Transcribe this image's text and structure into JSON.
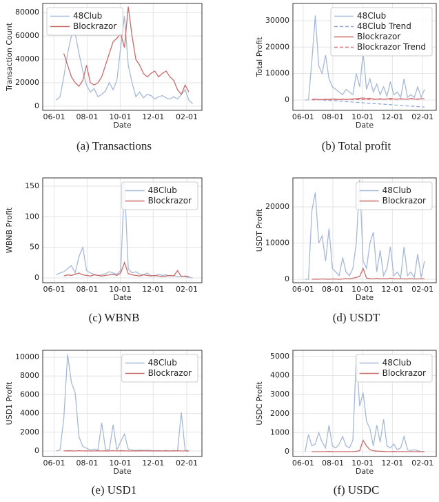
{
  "chart_data": [
    {
      "type": "line",
      "caption": "(a) Transactions",
      "xlabel": "Date",
      "ylabel": "Transaction Count",
      "legend": "upper left",
      "grid": true,
      "x": [
        "06-05",
        "06-12",
        "06-19",
        "06-26",
        "07-03",
        "07-10",
        "07-17",
        "07-24",
        "07-31",
        "08-07",
        "08-14",
        "08-21",
        "08-28",
        "09-04",
        "09-11",
        "09-18",
        "09-25",
        "10-02",
        "10-09",
        "10-16",
        "10-23",
        "10-30",
        "11-06",
        "11-13",
        "11-20",
        "11-27",
        "12-04",
        "12-11",
        "12-18",
        "12-25",
        "01-01",
        "01-08",
        "01-15",
        "01-22",
        "01-29",
        "02-05",
        "02-12",
        "02-19"
      ],
      "xlim": [
        "05-11",
        "03-01"
      ],
      "xticks": [
        "06-01",
        "08-01",
        "10-01",
        "12-01",
        "02-01"
      ],
      "ylim": [
        -3600,
        87800
      ],
      "yticks": [
        0,
        20000,
        40000,
        60000,
        80000
      ],
      "series": [
        {
          "name": "48Club",
          "color": "#a6b9d9",
          "values": [
            5000,
            8000,
            25000,
            45000,
            60000,
            62000,
            45000,
            30000,
            18000,
            12000,
            15000,
            8000,
            10000,
            13000,
            20000,
            14000,
            22000,
            50000,
            77000,
            35000,
            20000,
            8000,
            12000,
            7000,
            10000,
            9000,
            6000,
            8000,
            9000,
            7000,
            6000,
            8000,
            6000,
            10000,
            14000,
            5000,
            2000,
            null
          ]
        },
        {
          "name": "Blockrazor",
          "color": "#c96a6a",
          "values": [
            null,
            null,
            45000,
            35000,
            25000,
            20000,
            17000,
            22000,
            35000,
            20000,
            18000,
            20000,
            25000,
            35000,
            45000,
            55000,
            58000,
            62000,
            50000,
            85000,
            60000,
            40000,
            35000,
            28000,
            25000,
            28000,
            30000,
            25000,
            28000,
            30000,
            25000,
            22000,
            14000,
            10000,
            18000,
            12000,
            null,
            null
          ]
        }
      ]
    },
    {
      "type": "line",
      "caption": "(b) Total profit",
      "xlabel": "Date",
      "ylabel": "Total Profit",
      "legend": "upper right",
      "grid": true,
      "x": [
        "06-05",
        "06-12",
        "06-19",
        "06-26",
        "07-03",
        "07-10",
        "07-17",
        "07-24",
        "07-31",
        "08-07",
        "08-14",
        "08-21",
        "08-28",
        "09-04",
        "09-11",
        "09-18",
        "09-25",
        "10-02",
        "10-09",
        "10-16",
        "10-23",
        "10-30",
        "11-06",
        "11-13",
        "11-20",
        "11-27",
        "12-04",
        "12-11",
        "12-18",
        "12-25",
        "01-01",
        "01-08",
        "01-15",
        "01-22",
        "01-29",
        "02-05",
        "02-12",
        "02-19"
      ],
      "xlim": [
        "05-11",
        "03-01"
      ],
      "xticks": [
        "06-01",
        "08-01",
        "10-01",
        "12-01",
        "02-01"
      ],
      "ylim": [
        -3900,
        36500
      ],
      "yticks": [
        0,
        10000,
        20000,
        30000
      ],
      "series": [
        {
          "name": "48Club",
          "color": "#a6b9d9",
          "values": [
            0,
            0,
            15000,
            32000,
            13000,
            10000,
            17000,
            8000,
            5000,
            4000,
            3000,
            2000,
            4000,
            3000,
            2000,
            10000,
            5000,
            18000,
            4000,
            8000,
            3000,
            6000,
            2000,
            5000,
            1500,
            7000,
            2000,
            3000,
            1000,
            8000,
            1000,
            2000,
            1000,
            5000,
            1000,
            4000,
            null,
            null
          ]
        },
        {
          "name": "48Club Trend",
          "color": "#8fa9d6",
          "linestyle": "dashed",
          "values": [
            null,
            null,
            300,
            210,
            120,
            30,
            -60,
            -150,
            -240,
            -330,
            -420,
            -510,
            -600,
            -690,
            -780,
            -870,
            -960,
            -1050,
            -1140,
            -1230,
            -1320,
            -1410,
            -1500,
            -1590,
            -1680,
            -1770,
            -1860,
            -1950,
            -2040,
            -2130,
            -2220,
            -2310,
            -2400,
            -2490,
            -2580,
            -2670,
            null,
            null
          ]
        },
        {
          "name": "Blockrazor",
          "color": "#c96a6a",
          "values": [
            null,
            null,
            200,
            300,
            200,
            150,
            300,
            200,
            400,
            300,
            200,
            300,
            250,
            300,
            400,
            500,
            600,
            800,
            500,
            700,
            400,
            300,
            500,
            300,
            400,
            600,
            400,
            300,
            500,
            400,
            300,
            600,
            400,
            300,
            500,
            400,
            null,
            null
          ]
        },
        {
          "name": "Blockrazor Trend",
          "color": "#d9707a",
          "linestyle": "dashed",
          "values": [
            null,
            null,
            100,
            110,
            120,
            130,
            140,
            150,
            160,
            170,
            180,
            190,
            200,
            210,
            220,
            230,
            240,
            250,
            260,
            270,
            280,
            290,
            300,
            310,
            320,
            330,
            340,
            350,
            360,
            370,
            380,
            390,
            400,
            410,
            420,
            430,
            null,
            null
          ]
        }
      ]
    },
    {
      "type": "line",
      "caption": "(c) WBNB",
      "xlabel": "Date",
      "ylabel": "WBNB Profit",
      "legend": "upper right",
      "grid": true,
      "x": [
        "06-05",
        "06-12",
        "06-19",
        "06-26",
        "07-03",
        "07-10",
        "07-17",
        "07-24",
        "07-31",
        "08-07",
        "08-14",
        "08-21",
        "08-28",
        "09-04",
        "09-11",
        "09-18",
        "09-25",
        "10-02",
        "10-09",
        "10-16",
        "10-23",
        "10-30",
        "11-06",
        "11-13",
        "11-20",
        "11-27",
        "12-04",
        "12-11",
        "12-18",
        "12-25",
        "01-01",
        "01-08",
        "01-15",
        "01-22",
        "01-29",
        "02-05",
        "02-12",
        "02-19"
      ],
      "xlim": [
        "05-11",
        "03-01"
      ],
      "xticks": [
        "06-01",
        "08-01",
        "10-01",
        "12-01",
        "02-01"
      ],
      "ylim": [
        -7.9,
        163.5
      ],
      "yticks": [
        0,
        50,
        100,
        150
      ],
      "series": [
        {
          "name": "48Club",
          "color": "#a6b9d9",
          "values": [
            5,
            8,
            10,
            15,
            20,
            8,
            35,
            50,
            12,
            8,
            6,
            4,
            5,
            7,
            10,
            8,
            6,
            12,
            155,
            15,
            8,
            10,
            6,
            5,
            8,
            4,
            3,
            6,
            4,
            5,
            3,
            4,
            2,
            3,
            2,
            1,
            0,
            null
          ]
        },
        {
          "name": "Blockrazor",
          "color": "#c96a6a",
          "values": [
            null,
            null,
            3,
            5,
            4,
            6,
            8,
            5,
            4,
            3,
            5,
            4,
            3,
            4,
            5,
            6,
            4,
            8,
            25,
            7,
            5,
            4,
            3,
            5,
            4,
            3,
            4,
            3,
            2,
            3,
            4,
            3,
            12,
            2,
            3,
            2,
            null,
            null
          ]
        }
      ]
    },
    {
      "type": "line",
      "caption": "(d) USDT",
      "xlabel": "Date",
      "ylabel": "USDT Profit",
      "legend": "upper right",
      "grid": true,
      "x": [
        "06-05",
        "06-12",
        "06-19",
        "06-26",
        "07-03",
        "07-10",
        "07-17",
        "07-24",
        "07-31",
        "08-07",
        "08-14",
        "08-21",
        "08-28",
        "09-04",
        "09-11",
        "09-18",
        "09-25",
        "10-02",
        "10-09",
        "10-16",
        "10-23",
        "10-30",
        "11-06",
        "11-13",
        "11-20",
        "11-27",
        "12-04",
        "12-11",
        "12-18",
        "12-25",
        "01-01",
        "01-08",
        "01-15",
        "01-22",
        "01-29",
        "02-05",
        "02-12",
        "02-19"
      ],
      "xlim": [
        "05-11",
        "03-01"
      ],
      "xticks": [
        "06-01",
        "08-01",
        "10-01",
        "12-01",
        "02-01"
      ],
      "ylim": [
        -950,
        28000
      ],
      "yticks": [
        0,
        10000,
        20000
      ],
      "series": [
        {
          "name": "48Club",
          "color": "#a6b9d9",
          "values": [
            0,
            0,
            19000,
            24000,
            10000,
            12000,
            5000,
            14000,
            3000,
            2000,
            1000,
            6000,
            2000,
            1000,
            3000,
            10000,
            27500,
            5000,
            3000,
            10000,
            13000,
            2000,
            8000,
            1000,
            3000,
            9000,
            1000,
            2000,
            500,
            9000,
            1000,
            2000,
            500,
            7000,
            500,
            5000,
            null,
            null
          ]
        },
        {
          "name": "Blockrazor",
          "color": "#c96a6a",
          "values": [
            null,
            null,
            0,
            50,
            0,
            100,
            50,
            0,
            100,
            50,
            0,
            100,
            200,
            100,
            300,
            500,
            800,
            3000,
            300,
            200,
            100,
            300,
            100,
            200,
            100,
            300,
            200,
            100,
            200,
            100,
            100,
            200,
            100,
            100,
            200,
            100,
            null,
            null
          ]
        }
      ]
    },
    {
      "type": "line",
      "caption": "(e) USD1",
      "xlabel": "Date",
      "ylabel": "USD1 Profit",
      "legend": "upper right",
      "grid": true,
      "x": [
        "06-05",
        "06-12",
        "06-19",
        "06-26",
        "07-03",
        "07-10",
        "07-17",
        "07-24",
        "07-31",
        "08-07",
        "08-14",
        "08-21",
        "08-28",
        "09-04",
        "09-11",
        "09-18",
        "09-25",
        "10-02",
        "10-09",
        "10-16",
        "10-23",
        "10-30",
        "11-06",
        "11-13",
        "11-20",
        "11-27",
        "12-04",
        "12-11",
        "12-18",
        "12-25",
        "01-01",
        "01-08",
        "01-15",
        "01-22",
        "01-29",
        "02-05",
        "02-12",
        "02-19"
      ],
      "xlim": [
        "05-11",
        "03-01"
      ],
      "xticks": [
        "06-01",
        "08-01",
        "10-01",
        "12-01",
        "02-01"
      ],
      "ylim": [
        -590,
        10735
      ],
      "yticks": [
        0,
        2000,
        4000,
        6000,
        8000,
        10000
      ],
      "series": [
        {
          "name": "48Club",
          "color": "#a6b9d9",
          "values": [
            0,
            100,
            3500,
            10300,
            7300,
            6200,
            1500,
            500,
            300,
            100,
            200,
            100,
            3000,
            200,
            100,
            2800,
            100,
            1000,
            1800,
            200,
            100,
            50,
            100,
            50,
            100,
            50,
            0,
            50,
            0,
            50,
            0,
            50,
            0,
            4100,
            100,
            0,
            null,
            null
          ]
        },
        {
          "name": "Blockrazor",
          "color": "#c96a6a",
          "values": [
            null,
            null,
            0,
            20,
            10,
            0,
            30,
            0,
            10,
            0,
            0,
            20,
            0,
            10,
            0,
            30,
            0,
            20,
            10,
            0,
            0,
            10,
            0,
            20,
            0,
            0,
            10,
            0,
            0,
            10,
            0,
            0,
            20,
            0,
            0,
            0,
            null,
            null
          ]
        }
      ]
    },
    {
      "type": "line",
      "caption": "(f) USDC",
      "xlabel": "Date",
      "ylabel": "USDC Profit",
      "legend": "upper right",
      "grid": true,
      "x": [
        "06-05",
        "06-12",
        "06-19",
        "06-26",
        "07-03",
        "07-10",
        "07-17",
        "07-24",
        "07-31",
        "08-07",
        "08-14",
        "08-21",
        "08-28",
        "09-04",
        "09-11",
        "09-18",
        "09-25",
        "10-02",
        "10-09",
        "10-16",
        "10-23",
        "10-30",
        "11-06",
        "11-13",
        "11-20",
        "11-27",
        "12-04",
        "12-11",
        "12-18",
        "12-25",
        "01-01",
        "01-08",
        "01-15",
        "01-22",
        "01-29",
        "02-05",
        "02-12",
        "02-19"
      ],
      "xlim": [
        "05-11",
        "03-01"
      ],
      "xticks": [
        "06-01",
        "08-01",
        "10-01",
        "12-01",
        "02-01"
      ],
      "ylim": [
        -254,
        5326
      ],
      "yticks": [
        0,
        1000,
        2000,
        3000,
        4000,
        5000
      ],
      "series": [
        {
          "name": "48Club",
          "color": "#a6b9d9",
          "values": [
            0,
            900,
            300,
            400,
            1000,
            500,
            200,
            1400,
            300,
            200,
            400,
            800,
            300,
            200,
            600,
            5000,
            2400,
            3100,
            1600,
            1200,
            300,
            1400,
            500,
            1700,
            300,
            200,
            400,
            100,
            200,
            800,
            100,
            50,
            100,
            50,
            0,
            0,
            null,
            null
          ]
        },
        {
          "name": "Blockrazor",
          "color": "#c96a6a",
          "values": [
            null,
            null,
            0,
            0,
            0,
            0,
            0,
            10,
            0,
            0,
            0,
            0,
            0,
            0,
            0,
            20,
            50,
            600,
            300,
            100,
            50,
            30,
            20,
            10,
            0,
            0,
            10,
            0,
            0,
            0,
            0,
            0,
            0,
            0,
            0,
            0,
            null,
            null
          ]
        }
      ]
    }
  ]
}
